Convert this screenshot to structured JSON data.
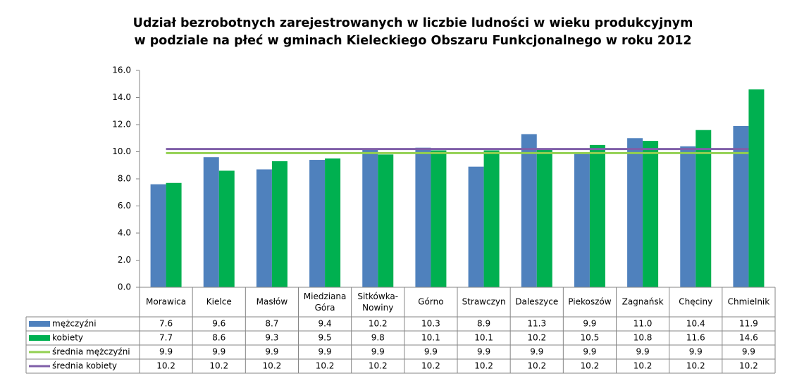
{
  "chart_data": {
    "type": "bar",
    "title": [
      "Udział bezrobotnych zarejestrowanych w liczbie ludności w wieku produkcyjnym",
      "w podziale na płeć w gminach Kieleckiego Obszaru Funkcjonalnego w roku 2012"
    ],
    "categories": [
      "Morawica",
      "Kielce",
      "Masłów",
      "Miedziana Góra",
      "Sitkówka-Nowiny",
      "Górno",
      "Strawczyn",
      "Daleszyce",
      "Piekoszów",
      "Zagnańsk",
      "Chęciny",
      "Chmielnik"
    ],
    "series": [
      {
        "name": "mężczyźni",
        "kind": "bar",
        "color": "#4f81bd",
        "values": [
          7.6,
          9.6,
          8.7,
          9.4,
          10.2,
          10.3,
          8.9,
          11.3,
          9.9,
          11.0,
          10.4,
          11.9
        ],
        "value_labels": [
          "7.6",
          "9.6",
          "8.7",
          "9.4",
          "10.2",
          "10.3",
          "8.9",
          "11.3",
          "9.9",
          "11.0",
          "10.4",
          "11.9"
        ]
      },
      {
        "name": "kobiety",
        "kind": "bar",
        "color": "#00b050",
        "values": [
          7.7,
          8.6,
          9.3,
          9.5,
          9.8,
          10.1,
          10.1,
          10.2,
          10.5,
          10.8,
          11.6,
          14.6
        ],
        "value_labels": [
          "7.7",
          "8.6",
          "9.3",
          "9.5",
          "9.8",
          "10.1",
          "10.1",
          "10.2",
          "10.5",
          "10.8",
          "11.6",
          "14.6"
        ]
      },
      {
        "name": "średnia mężczyźni",
        "kind": "line",
        "color": "#92d050",
        "values": [
          9.9,
          9.9,
          9.9,
          9.9,
          9.9,
          9.9,
          9.9,
          9.9,
          9.9,
          9.9,
          9.9,
          9.9
        ],
        "value_labels": [
          "9.9",
          "9.9",
          "9.9",
          "9.9",
          "9.9",
          "9.9",
          "9.9",
          "9.9",
          "9.9",
          "9.9",
          "9.9",
          "9.9"
        ]
      },
      {
        "name": "średnia kobiety",
        "kind": "line",
        "color": "#7f5fa8",
        "values": [
          10.2,
          10.2,
          10.2,
          10.2,
          10.2,
          10.2,
          10.2,
          10.2,
          10.2,
          10.2,
          10.2,
          10.2
        ],
        "value_labels": [
          "10.2",
          "10.2",
          "10.2",
          "10.2",
          "10.2",
          "10.2",
          "10.2",
          "10.2",
          "10.2",
          "10.2",
          "10.2",
          "10.2"
        ]
      }
    ],
    "ylim": [
      0,
      16
    ],
    "yticks": [
      {
        "value": 0,
        "label": "0.0"
      },
      {
        "value": 2,
        "label": "2.0"
      },
      {
        "value": 4,
        "label": "4.0"
      },
      {
        "value": 6,
        "label": "6.0"
      },
      {
        "value": 8,
        "label": "8.0"
      },
      {
        "value": 10,
        "label": "10.0"
      },
      {
        "value": 12,
        "label": "12.0"
      },
      {
        "value": 14,
        "label": "14.0"
      },
      {
        "value": 16,
        "label": "16.0"
      }
    ],
    "grid": false
  }
}
